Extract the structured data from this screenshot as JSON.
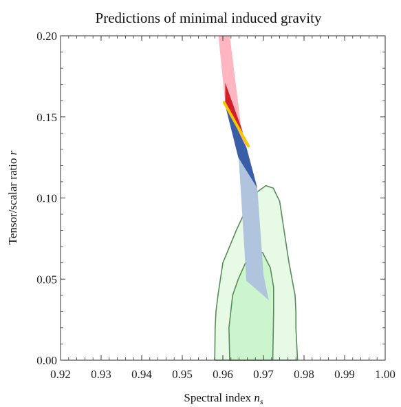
{
  "chart_data": {
    "type": "region",
    "title": "Predictions of minimal induced gravity",
    "xlabel": {
      "main": "Spectral index ",
      "italic": "n",
      "sub": "s"
    },
    "ylabel": {
      "main": "Tensor/scalar ratio ",
      "italic": "r"
    },
    "xlim": [
      0.92,
      1.0
    ],
    "ylim": [
      0.0,
      0.2
    ],
    "x_ticks": [
      "0.92",
      "0.93",
      "0.94",
      "0.95",
      "0.96",
      "0.97",
      "0.98",
      "0.99",
      "1.00"
    ],
    "y_ticks": [
      "0.00",
      "0.05",
      "0.10",
      "0.15",
      "0.20"
    ],
    "x_tick_values": [
      0.92,
      0.93,
      0.94,
      0.95,
      0.96,
      0.97,
      0.98,
      0.99,
      1.0
    ],
    "y_tick_values": [
      0.0,
      0.05,
      0.1,
      0.15,
      0.2
    ],
    "grid": false,
    "regions": [
      {
        "kind": "outer-contour",
        "fill": "#e6fae6",
        "stroke": "#5a8a5a",
        "points": [
          [
            0.958,
            0.0
          ],
          [
            0.9581,
            0.02
          ],
          [
            0.9583,
            0.03
          ],
          [
            0.9588,
            0.04
          ],
          [
            0.96,
            0.06
          ],
          [
            0.9633,
            0.08
          ],
          [
            0.9659,
            0.094
          ],
          [
            0.9686,
            0.104
          ],
          [
            0.9706,
            0.1076
          ],
          [
            0.9724,
            0.1061
          ],
          [
            0.974,
            0.098
          ],
          [
            0.9752,
            0.078
          ],
          [
            0.9763,
            0.06
          ],
          [
            0.9778,
            0.04
          ],
          [
            0.978,
            0.03
          ],
          [
            0.978,
            0.02
          ],
          [
            0.9784,
            0.0
          ],
          [
            0.958,
            0.0
          ]
        ]
      },
      {
        "kind": "inner-contour",
        "fill": "#cdf5cd",
        "stroke": "#5a8a5a",
        "points": [
          [
            0.9617,
            0.0
          ],
          [
            0.9615,
            0.02
          ],
          [
            0.9624,
            0.04
          ],
          [
            0.9638,
            0.05
          ],
          [
            0.9658,
            0.0612
          ],
          [
            0.968,
            0.067
          ],
          [
            0.9698,
            0.0663
          ],
          [
            0.9717,
            0.057
          ],
          [
            0.9725,
            0.045
          ],
          [
            0.9725,
            0.03
          ],
          [
            0.9723,
            0.0
          ],
          [
            0.9617,
            0.0
          ]
        ]
      },
      {
        "kind": "light-blue-band",
        "fill": "#b0c4de",
        "points": [
          [
            0.9639,
            0.125
          ],
          [
            0.9685,
            0.106
          ],
          [
            0.97,
            0.053
          ],
          [
            0.9713,
            0.037
          ],
          [
            0.9658,
            0.049
          ],
          [
            0.9639,
            0.125
          ]
        ]
      },
      {
        "kind": "dark-blue-band",
        "fill": "#3a5da8",
        "points": [
          [
            0.9605,
            0.158
          ],
          [
            0.9645,
            0.1435
          ],
          [
            0.9685,
            0.106
          ],
          [
            0.9638,
            0.125
          ],
          [
            0.9605,
            0.158
          ]
        ]
      },
      {
        "kind": "pink-band",
        "fill": "#ffb6c1",
        "points": [
          [
            0.9589,
            0.2
          ],
          [
            0.9617,
            0.2
          ],
          [
            0.9645,
            0.1436
          ],
          [
            0.9658,
            0.131
          ],
          [
            0.9606,
            0.158
          ],
          [
            0.9589,
            0.2
          ]
        ]
      },
      {
        "kind": "red-band",
        "fill": "#d31f2a",
        "points": [
          [
            0.9606,
            0.171
          ],
          [
            0.9645,
            0.1436
          ],
          [
            0.9662,
            0.131
          ],
          [
            0.965,
            0.14
          ],
          [
            0.9606,
            0.158
          ],
          [
            0.9606,
            0.171
          ]
        ]
      }
    ],
    "lines": [
      {
        "kind": "yellow-line",
        "stroke": "#f5c800",
        "points": [
          [
            0.9603,
            0.159
          ],
          [
            0.9663,
            0.132
          ]
        ]
      }
    ]
  }
}
